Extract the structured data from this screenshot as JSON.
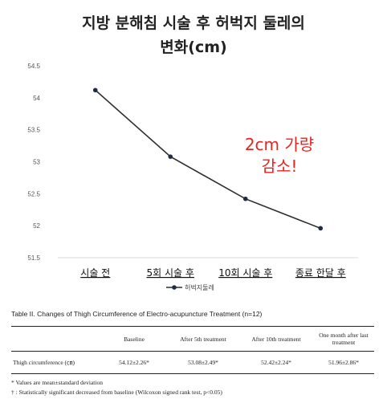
{
  "title_line1": "지방 분해침 시술 후 허벅지 둘레의",
  "title_line2": "변화(cm)",
  "annotation_line1": "2cm 가량",
  "annotation_line2": "감소!",
  "colors": {
    "line": "#2f2f2f",
    "annotation": "#e8231f",
    "grid": "#d9d9d9"
  },
  "chart_data": {
    "type": "line",
    "categories": [
      "시술 전",
      "5회 시술 후",
      "10회 시술 후",
      "종료 한달 후"
    ],
    "series": [
      {
        "name": "허벅지둘레",
        "values": [
          54.12,
          53.08,
          52.42,
          51.96
        ]
      }
    ],
    "ylim": [
      51.5,
      54.5
    ],
    "yticks": [
      "51.5",
      "52",
      "52.5",
      "53",
      "53.5",
      "54",
      "54.5"
    ],
    "grid": false,
    "legend": "bottom"
  },
  "table": {
    "caption": "Table II. Changes of Thigh Circumference of Electro-acupuncture Treatment (n=12)",
    "headers": [
      "",
      "Baseline",
      "After 5th treatment",
      "After 10th treatment",
      "One month after last treatment"
    ],
    "row": {
      "label": "Thigh circumference (㎝)",
      "cells": [
        "54.12±2.26*",
        "53.08±2.49*",
        "52.42±2.24*",
        "51.96±2.86*"
      ]
    },
    "notes": [
      "* Values are mean±standard deviation",
      "† : Statistically significant decreased from baseline (Wilcoxon signed rank test, p<0.05)"
    ]
  }
}
